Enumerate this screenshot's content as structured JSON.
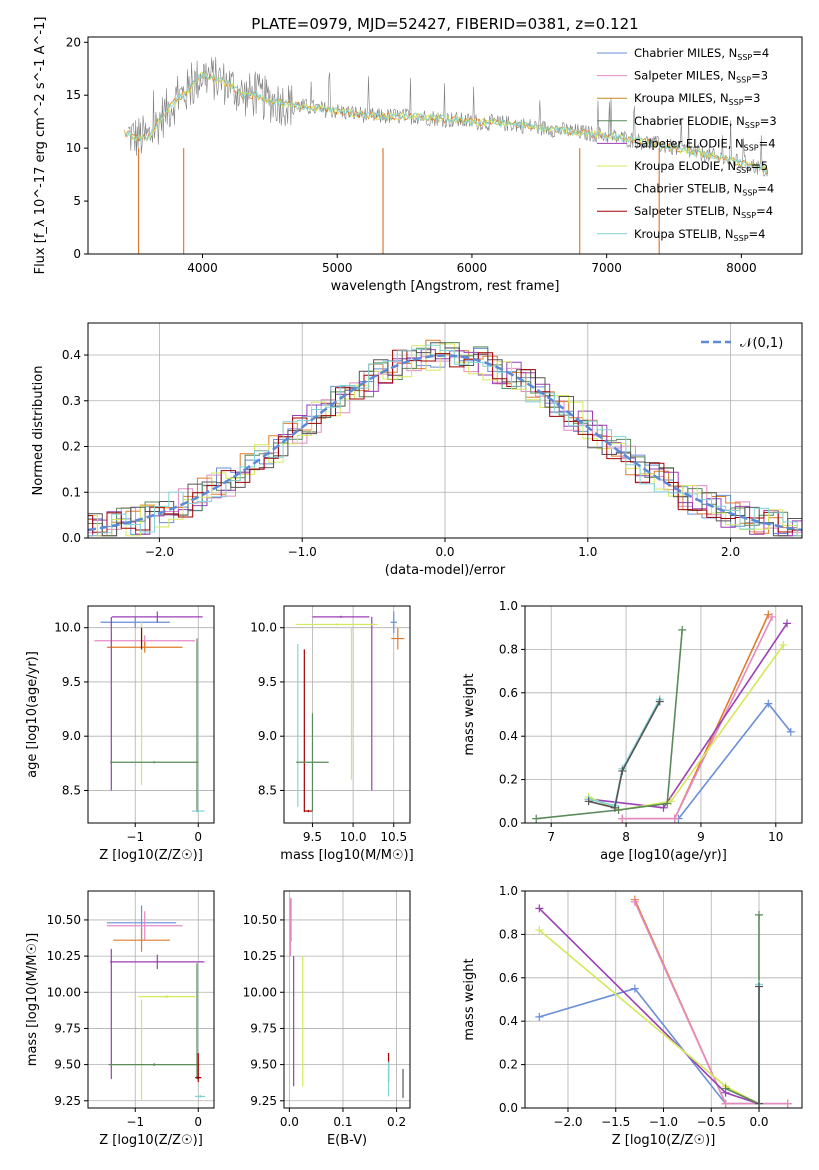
{
  "colors": {
    "blue": "#6a8fd8",
    "pink": "#e48bc4",
    "orange": "#e07b2c",
    "green": "#5a8a5a",
    "purple": "#9b3fb5",
    "yellow": "#d6e85a",
    "gray": "#7f7f7f",
    "darkred": "#a00000",
    "cyan": "#7fd4d8"
  },
  "chart_data": [
    {
      "id": "spectrum",
      "type": "line",
      "title": "PLATE=0979, MJD=52427, FIBERID=0381, z=0.121",
      "xlabel": "wavelength [Angstrom, rest frame]",
      "ylabel": "Flux [f_λ 10^-17 erg cm^-2 s^-1 A^-1]",
      "xlim": [
        3150,
        8450
      ],
      "ylim": [
        0,
        20.5
      ],
      "xticks": [
        4000,
        5000,
        6000,
        7000,
        8000
      ],
      "yticks": [
        0,
        5,
        10,
        15,
        20
      ],
      "legend_position": "top-right",
      "legend": [
        {
          "name": "Chabrier MILES, N_SSP=4",
          "color": "#6a8fd8"
        },
        {
          "name": "Salpeter MILES, N_SSP=3",
          "color": "#e48bc4"
        },
        {
          "name": "Kroupa MILES, N_SSP=3",
          "color": "#c08a1e"
        },
        {
          "name": "Chabrier ELODIE, N_SSP=3",
          "color": "#5a8a5a"
        },
        {
          "name": "Salpeter ELODIE, N_SSP=4",
          "color": "#9b3fb5"
        },
        {
          "name": "Kroupa ELODIE, N_SSP=5",
          "color": "#d6e85a"
        },
        {
          "name": "Chabrier STELIB, N_SSP=4",
          "color": "#555555"
        },
        {
          "name": "Salpeter STELIB, N_SSP=4",
          "color": "#a00000"
        },
        {
          "name": "Kroupa STELIB, N_SSP=4",
          "color": "#7fd4d8"
        }
      ],
      "continuum_x": [
        3420,
        3500,
        3600,
        3700,
        3800,
        3900,
        4000,
        4100,
        4200,
        4300,
        4400,
        4500,
        4700,
        5000,
        5300,
        5600,
        6000,
        6300,
        6600,
        7000,
        7400,
        7800,
        8100,
        8200
      ],
      "continuum_y": [
        11.5,
        11,
        11,
        13,
        14.5,
        15.5,
        17,
        16.5,
        16,
        15,
        15,
        14.5,
        14,
        13.5,
        13,
        13,
        12.5,
        12.3,
        11.8,
        11.2,
        10.3,
        9.2,
        8.3,
        7.8
      ],
      "grid": false
    },
    {
      "id": "residuals",
      "type": "histogram",
      "xlabel": "(data-model)/error",
      "ylabel": "Normed distribution",
      "xlim": [
        -2.5,
        2.5
      ],
      "ylim": [
        0,
        0.47
      ],
      "xticks": [
        -2,
        -1,
        0,
        1,
        2
      ],
      "yticks": [
        0.0,
        0.1,
        0.2,
        0.3,
        0.4
      ],
      "legend": [
        {
          "name": "𝒩(0,1)",
          "color": "#5a8ad8",
          "style": "dashed"
        }
      ],
      "legend_position": "top-right",
      "grid": true
    },
    {
      "id": "age_vs_Z",
      "type": "errorbar",
      "xlabel": "Z [log10(Z/Z☉)]",
      "ylabel": "age [log10(age/yr)]",
      "xlim": [
        -1.75,
        0.25
      ],
      "ylim": [
        8.2,
        10.2
      ],
      "xticks": [
        -1,
        0
      ],
      "yticks": [
        8.5,
        9.0,
        9.5,
        10.0
      ],
      "grid": true
    },
    {
      "id": "age_vs_mass",
      "type": "errorbar",
      "xlabel": "mass [log10(M/M☉)]",
      "ylabel": "",
      "xlim": [
        9.15,
        10.7
      ],
      "ylim": [
        8.2,
        10.2
      ],
      "xticks": [
        9.5,
        10.0,
        10.5
      ],
      "yticks": [
        8.5,
        9.0,
        9.5,
        10.0
      ],
      "grid": true
    },
    {
      "id": "weight_vs_age",
      "type": "line",
      "xlabel": "age [log10(age/yr)]",
      "ylabel": "mass weight",
      "xlim": [
        6.65,
        10.35
      ],
      "ylim": [
        0,
        1.0
      ],
      "xticks": [
        7,
        8,
        9,
        10
      ],
      "yticks": [
        0.0,
        0.2,
        0.4,
        0.6,
        0.8,
        1.0
      ],
      "grid": true,
      "series": [
        {
          "color": "#6a8fd8",
          "x": [
            8.7,
            9.9,
            10.2
          ],
          "y": [
            0.02,
            0.55,
            0.42
          ]
        },
        {
          "color": "#e07b2c",
          "x": [
            7.95,
            8.65,
            9.9
          ],
          "y": [
            0.02,
            0.02,
            0.96
          ]
        },
        {
          "color": "#e48bc4",
          "x": [
            7.95,
            8.65,
            9.95
          ],
          "y": [
            0.02,
            0.02,
            0.95
          ]
        },
        {
          "color": "#9b3fb5",
          "x": [
            7.5,
            8.5,
            10.15
          ],
          "y": [
            0.11,
            0.07,
            0.92
          ]
        },
        {
          "color": "#d6e85a",
          "x": [
            7.5,
            7.9,
            8.6,
            10.1
          ],
          "y": [
            0.12,
            0.06,
            0.1,
            0.82
          ]
        },
        {
          "color": "#5a8a5a",
          "x": [
            6.8,
            7.9,
            8.55,
            8.75
          ],
          "y": [
            0.02,
            0.06,
            0.09,
            0.89
          ]
        },
        {
          "color": "#7fd4d8",
          "x": [
            7.5,
            7.85,
            7.95,
            8.45
          ],
          "y": [
            0.11,
            0.08,
            0.25,
            0.57
          ]
        },
        {
          "color": "#555555",
          "x": [
            7.5,
            7.85,
            7.95,
            8.45
          ],
          "y": [
            0.1,
            0.07,
            0.24,
            0.56
          ]
        }
      ]
    },
    {
      "id": "mass_vs_Z",
      "type": "errorbar",
      "xlabel": "Z [log10(Z/Z☉)]",
      "ylabel": "mass [log10(M/M☉)]",
      "xlim": [
        -1.75,
        0.25
      ],
      "ylim": [
        9.2,
        10.7
      ],
      "xticks": [
        -1,
        0
      ],
      "yticks": [
        9.25,
        9.5,
        9.75,
        10.0,
        10.25,
        10.5
      ],
      "grid": true
    },
    {
      "id": "mass_vs_ebv",
      "type": "errorbar",
      "xlabel": "E(B-V)",
      "ylabel": "",
      "xlim": [
        -0.01,
        0.225
      ],
      "ylim": [
        9.2,
        10.7
      ],
      "xticks": [
        0.0,
        0.1,
        0.2
      ],
      "yticks": [
        9.25,
        9.5,
        9.75,
        10.0,
        10.25,
        10.5
      ],
      "grid": true
    },
    {
      "id": "weight_vs_Z",
      "type": "line",
      "xlabel": "Z [log10(Z/Z☉)]",
      "ylabel": "mass weight",
      "xlim": [
        -2.45,
        0.45
      ],
      "ylim": [
        0,
        1.0
      ],
      "xticks": [
        -2.0,
        -1.5,
        -1.0,
        -0.5,
        0.0
      ],
      "yticks": [
        0.0,
        0.2,
        0.4,
        0.6,
        0.8,
        1.0
      ],
      "grid": true,
      "series": [
        {
          "color": "#6a8fd8",
          "x": [
            -2.3,
            -1.3,
            -0.35,
            0.0
          ],
          "y": [
            0.42,
            0.55,
            0.02,
            0.02
          ]
        },
        {
          "color": "#e07b2c",
          "x": [
            -1.3,
            -0.35,
            0.0,
            0.3
          ],
          "y": [
            0.96,
            0.02,
            0.02,
            0.02
          ]
        },
        {
          "color": "#e48bc4",
          "x": [
            -1.3,
            -0.35,
            0.3
          ],
          "y": [
            0.95,
            0.02,
            0.02
          ]
        },
        {
          "color": "#9b3fb5",
          "x": [
            -2.3,
            -0.35,
            0.0
          ],
          "y": [
            0.92,
            0.07,
            0.02
          ]
        },
        {
          "color": "#d6e85a",
          "x": [
            -2.3,
            -0.35,
            0.0
          ],
          "y": [
            0.82,
            0.1,
            0.02
          ]
        },
        {
          "color": "#5a8a5a",
          "x": [
            -0.35,
            0.0,
            0.0
          ],
          "y": [
            0.09,
            0.02,
            0.89
          ]
        },
        {
          "color": "#7fd4d8",
          "x": [
            0.0,
            0.0
          ],
          "y": [
            0.02,
            0.57
          ]
        },
        {
          "color": "#555555",
          "x": [
            0.0,
            0.0
          ],
          "y": [
            0.02,
            0.56
          ]
        }
      ]
    }
  ]
}
